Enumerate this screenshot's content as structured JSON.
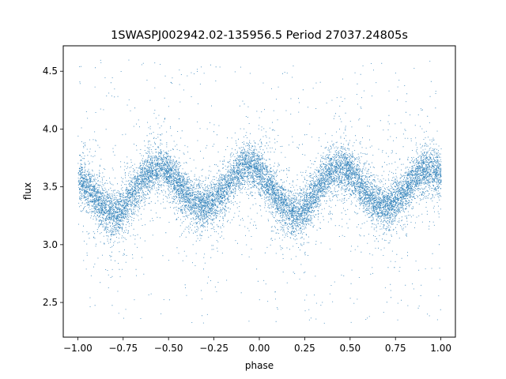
{
  "chart_data": {
    "type": "scatter",
    "title": "1SWASPJ002942.02-135956.5 Period 27037.24805s",
    "xlabel": "phase",
    "ylabel": "flux",
    "xlim": [
      -1.08,
      1.08
    ],
    "ylim": [
      2.2,
      4.72
    ],
    "xticks": [
      -1.0,
      -0.75,
      -0.5,
      -0.25,
      0.0,
      0.25,
      0.5,
      0.75,
      1.0
    ],
    "xtick_labels": [
      "−1.00",
      "−0.75",
      "−0.50",
      "−0.25",
      "0.00",
      "0.25",
      "0.50",
      "0.75",
      "1.00"
    ],
    "yticks": [
      2.5,
      3.0,
      3.5,
      4.0,
      4.5
    ],
    "ytick_labels": [
      "2.5",
      "3.0",
      "3.5",
      "4.0",
      "4.5"
    ],
    "grid": false,
    "legend": "none",
    "marker_color": "#1f77b4",
    "series": [
      {
        "x_range": [
          -1.0,
          1.0
        ],
        "model_profile": {
          "phase": [
            -1.0,
            -0.95,
            -0.9,
            -0.85,
            -0.8,
            -0.75,
            -0.7,
            -0.65,
            -0.6,
            -0.55,
            -0.5,
            -0.45,
            -0.4,
            -0.35,
            -0.3,
            -0.25,
            -0.2,
            -0.15,
            -0.1,
            -0.05,
            0.0,
            0.05,
            0.1,
            0.15,
            0.2,
            0.25,
            0.3,
            0.35,
            0.4,
            0.45,
            0.5,
            0.55,
            0.6,
            0.65,
            0.7,
            0.75,
            0.8,
            0.85,
            0.9,
            0.95,
            1.0
          ],
          "flux": [
            3.58,
            3.5,
            3.4,
            3.3,
            3.26,
            3.32,
            3.44,
            3.56,
            3.64,
            3.67,
            3.63,
            3.53,
            3.42,
            3.35,
            3.33,
            3.37,
            3.47,
            3.58,
            3.66,
            3.7,
            3.64,
            3.52,
            3.4,
            3.3,
            3.26,
            3.32,
            3.44,
            3.56,
            3.64,
            3.67,
            3.63,
            3.53,
            3.42,
            3.35,
            3.33,
            3.37,
            3.47,
            3.58,
            3.64,
            3.66,
            3.6
          ]
        },
        "flux_scatter": 0.09,
        "outlier_range": [
          2.32,
          4.62
        ]
      }
    ]
  }
}
